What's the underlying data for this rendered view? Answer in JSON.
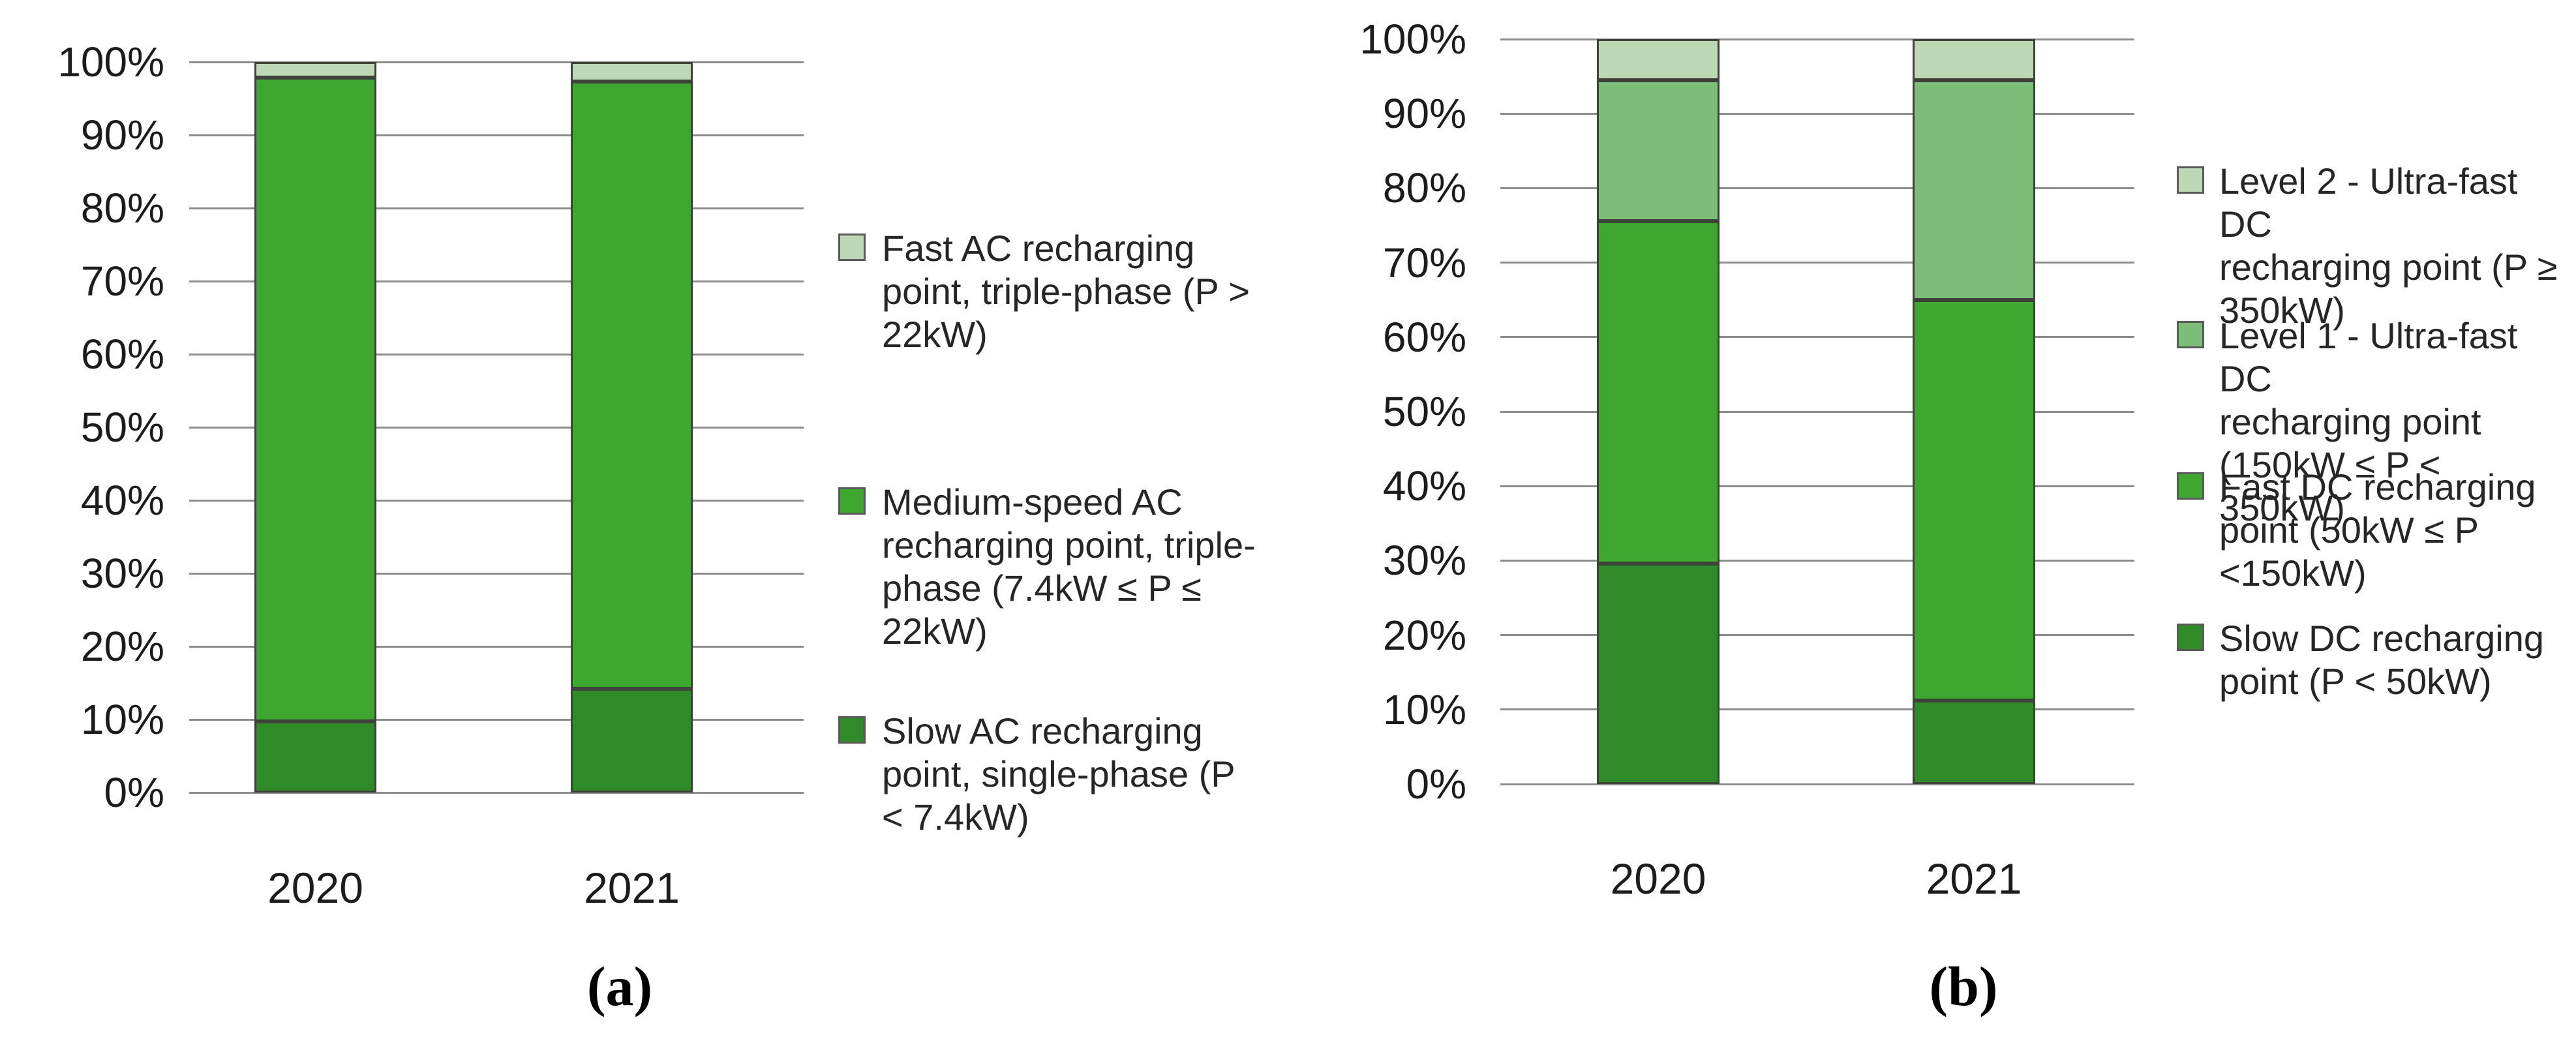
{
  "figure": {
    "background": "#ffffff",
    "caption_a": "(a)",
    "caption_b": "(b)"
  },
  "colors": {
    "dark_green": "#2E8B28",
    "medium_green": "#3EA72F",
    "light_green": "#7CBD78",
    "pale_green": "#BDD8B5",
    "gridline": "#8c8c8c"
  },
  "chart_data": [
    {
      "id": "a",
      "type": "bar",
      "stacked": true,
      "unit": "percent",
      "caption": "(a)",
      "categories": [
        "2020",
        "2021"
      ],
      "series": [
        {
          "name": "Slow AC recharging point, single-phase (P < 7.4kW)",
          "legend_label": "Slow AC recharging\npoint, single-phase (P\n< 7.4kW)",
          "color": "#2E8B28",
          "values": [
            9.7,
            14.2
          ]
        },
        {
          "name": "Medium-speed AC recharging point, triple-phase (7.4kW ≤ P ≤ 22kW)",
          "legend_label": "Medium-speed AC\nrecharging point, triple-\nphase (7.4kW ≤ P ≤\n22kW)",
          "color": "#3EA72F",
          "values": [
            88.2,
            83.1
          ]
        },
        {
          "name": "Fast AC recharging point, triple-phase (P > 22kW)",
          "legend_label": "Fast AC recharging\npoint, triple-phase (P >\n22kW)",
          "color": "#BDD8B5",
          "values": [
            2.1,
            2.7
          ]
        }
      ],
      "y_ticks": [
        "100%",
        "90%",
        "80%",
        "70%",
        "60%",
        "50%",
        "40%",
        "30%",
        "20%",
        "10%",
        "0%"
      ],
      "ylim": [
        0,
        100
      ],
      "grid": true,
      "legend_position": "right"
    },
    {
      "id": "b",
      "type": "bar",
      "stacked": true,
      "unit": "percent",
      "caption": "(b)",
      "categories": [
        "2020",
        "2021"
      ],
      "series": [
        {
          "name": "Slow DC recharging point (P < 50kW)",
          "legend_label": "Slow DC recharging\npoint (P < 50kW)",
          "color": "#2E8B28",
          "values": [
            29.6,
            11.2
          ]
        },
        {
          "name": "Fast DC recharging point (50kW ≤ P <150kW)",
          "legend_label": "Fast DC recharging\npoint (50kW ≤ P\n<150kW)",
          "color": "#3EA72F",
          "values": [
            46.0,
            53.8
          ]
        },
        {
          "name": "Level 1 - Ultra-fast DC recharging point (150kW ≤ P < 350kW)",
          "legend_label": "Level 1 - Ultra-fast DC\nrecharging point\n(150kW ≤ P < 350kW)",
          "color": "#7CBD78",
          "values": [
            18.9,
            29.5
          ]
        },
        {
          "name": "Level 2 - Ultra-fast DC recharging point (P ≥ 350kW)",
          "legend_label": "Level 2 - Ultra-fast DC\nrecharging point (P ≥\n350kW)",
          "color": "#BDD8B5",
          "values": [
            5.5,
            5.5
          ]
        }
      ],
      "y_ticks": [
        "100%",
        "90%",
        "80%",
        "70%",
        "60%",
        "50%",
        "40%",
        "30%",
        "20%",
        "10%",
        "0%"
      ],
      "ylim": [
        0,
        100
      ],
      "grid": true,
      "legend_position": "right"
    }
  ]
}
